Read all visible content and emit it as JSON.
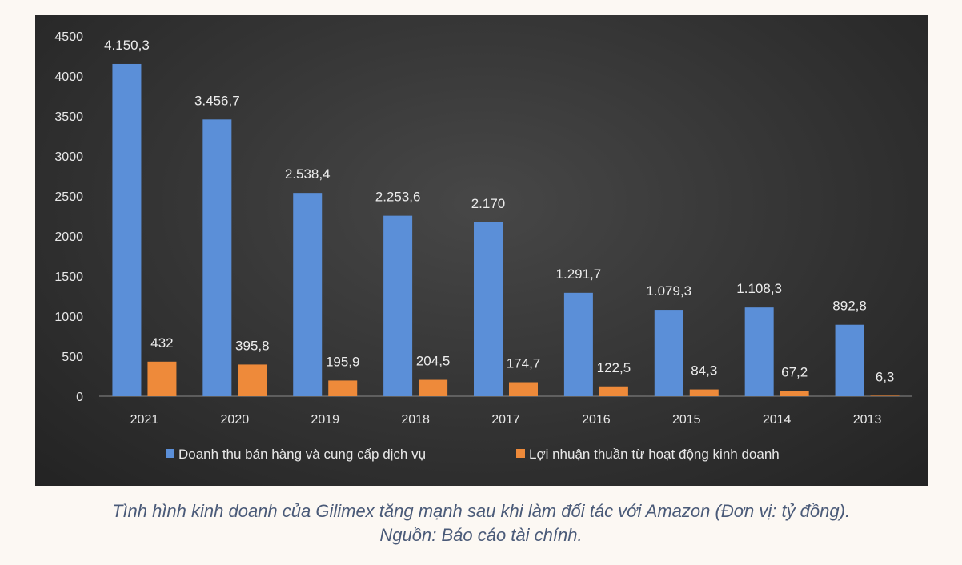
{
  "chart_data": {
    "type": "bar",
    "categories": [
      "2021",
      "2020",
      "2019",
      "2018",
      "2017",
      "2016",
      "2015",
      "2014",
      "2013"
    ],
    "series": [
      {
        "name": "Doanh thu bán hàng và cung cấp dịch vụ",
        "color": "#5b8fd8",
        "values": [
          4150.3,
          3456.7,
          2538.4,
          2253.6,
          2170,
          1291.7,
          1079.3,
          1108.3,
          892.8
        ],
        "labels": [
          "4.150,3",
          "3.456,7",
          "2.538,4",
          "2.253,6",
          "2.170",
          "1.291,7",
          "1.079,3",
          "1.108,3",
          "892,8"
        ]
      },
      {
        "name": "Lợi nhuận thuần từ hoạt động kinh doanh",
        "color": "#ee8a3a",
        "values": [
          432,
          395.8,
          195.9,
          204.5,
          174.7,
          122.5,
          84.3,
          67.2,
          6.3
        ],
        "labels": [
          "432",
          "395,8",
          "195,9",
          "204,5",
          "174,7",
          "122,5",
          "84,3",
          "67,2",
          "6,3"
        ]
      }
    ],
    "yticks": [
      0,
      500,
      1000,
      1500,
      2000,
      2500,
      3000,
      3500,
      4000,
      4500
    ],
    "ylim": [
      0,
      4500
    ],
    "legend_position": "bottom",
    "grid": false
  },
  "caption": {
    "line1": "Tình hình kinh doanh của Gilimex tăng mạnh sau khi làm đối tác với Amazon (Đơn vị: tỷ đồng).",
    "line2": "Nguồn: Báo cáo tài chính."
  }
}
